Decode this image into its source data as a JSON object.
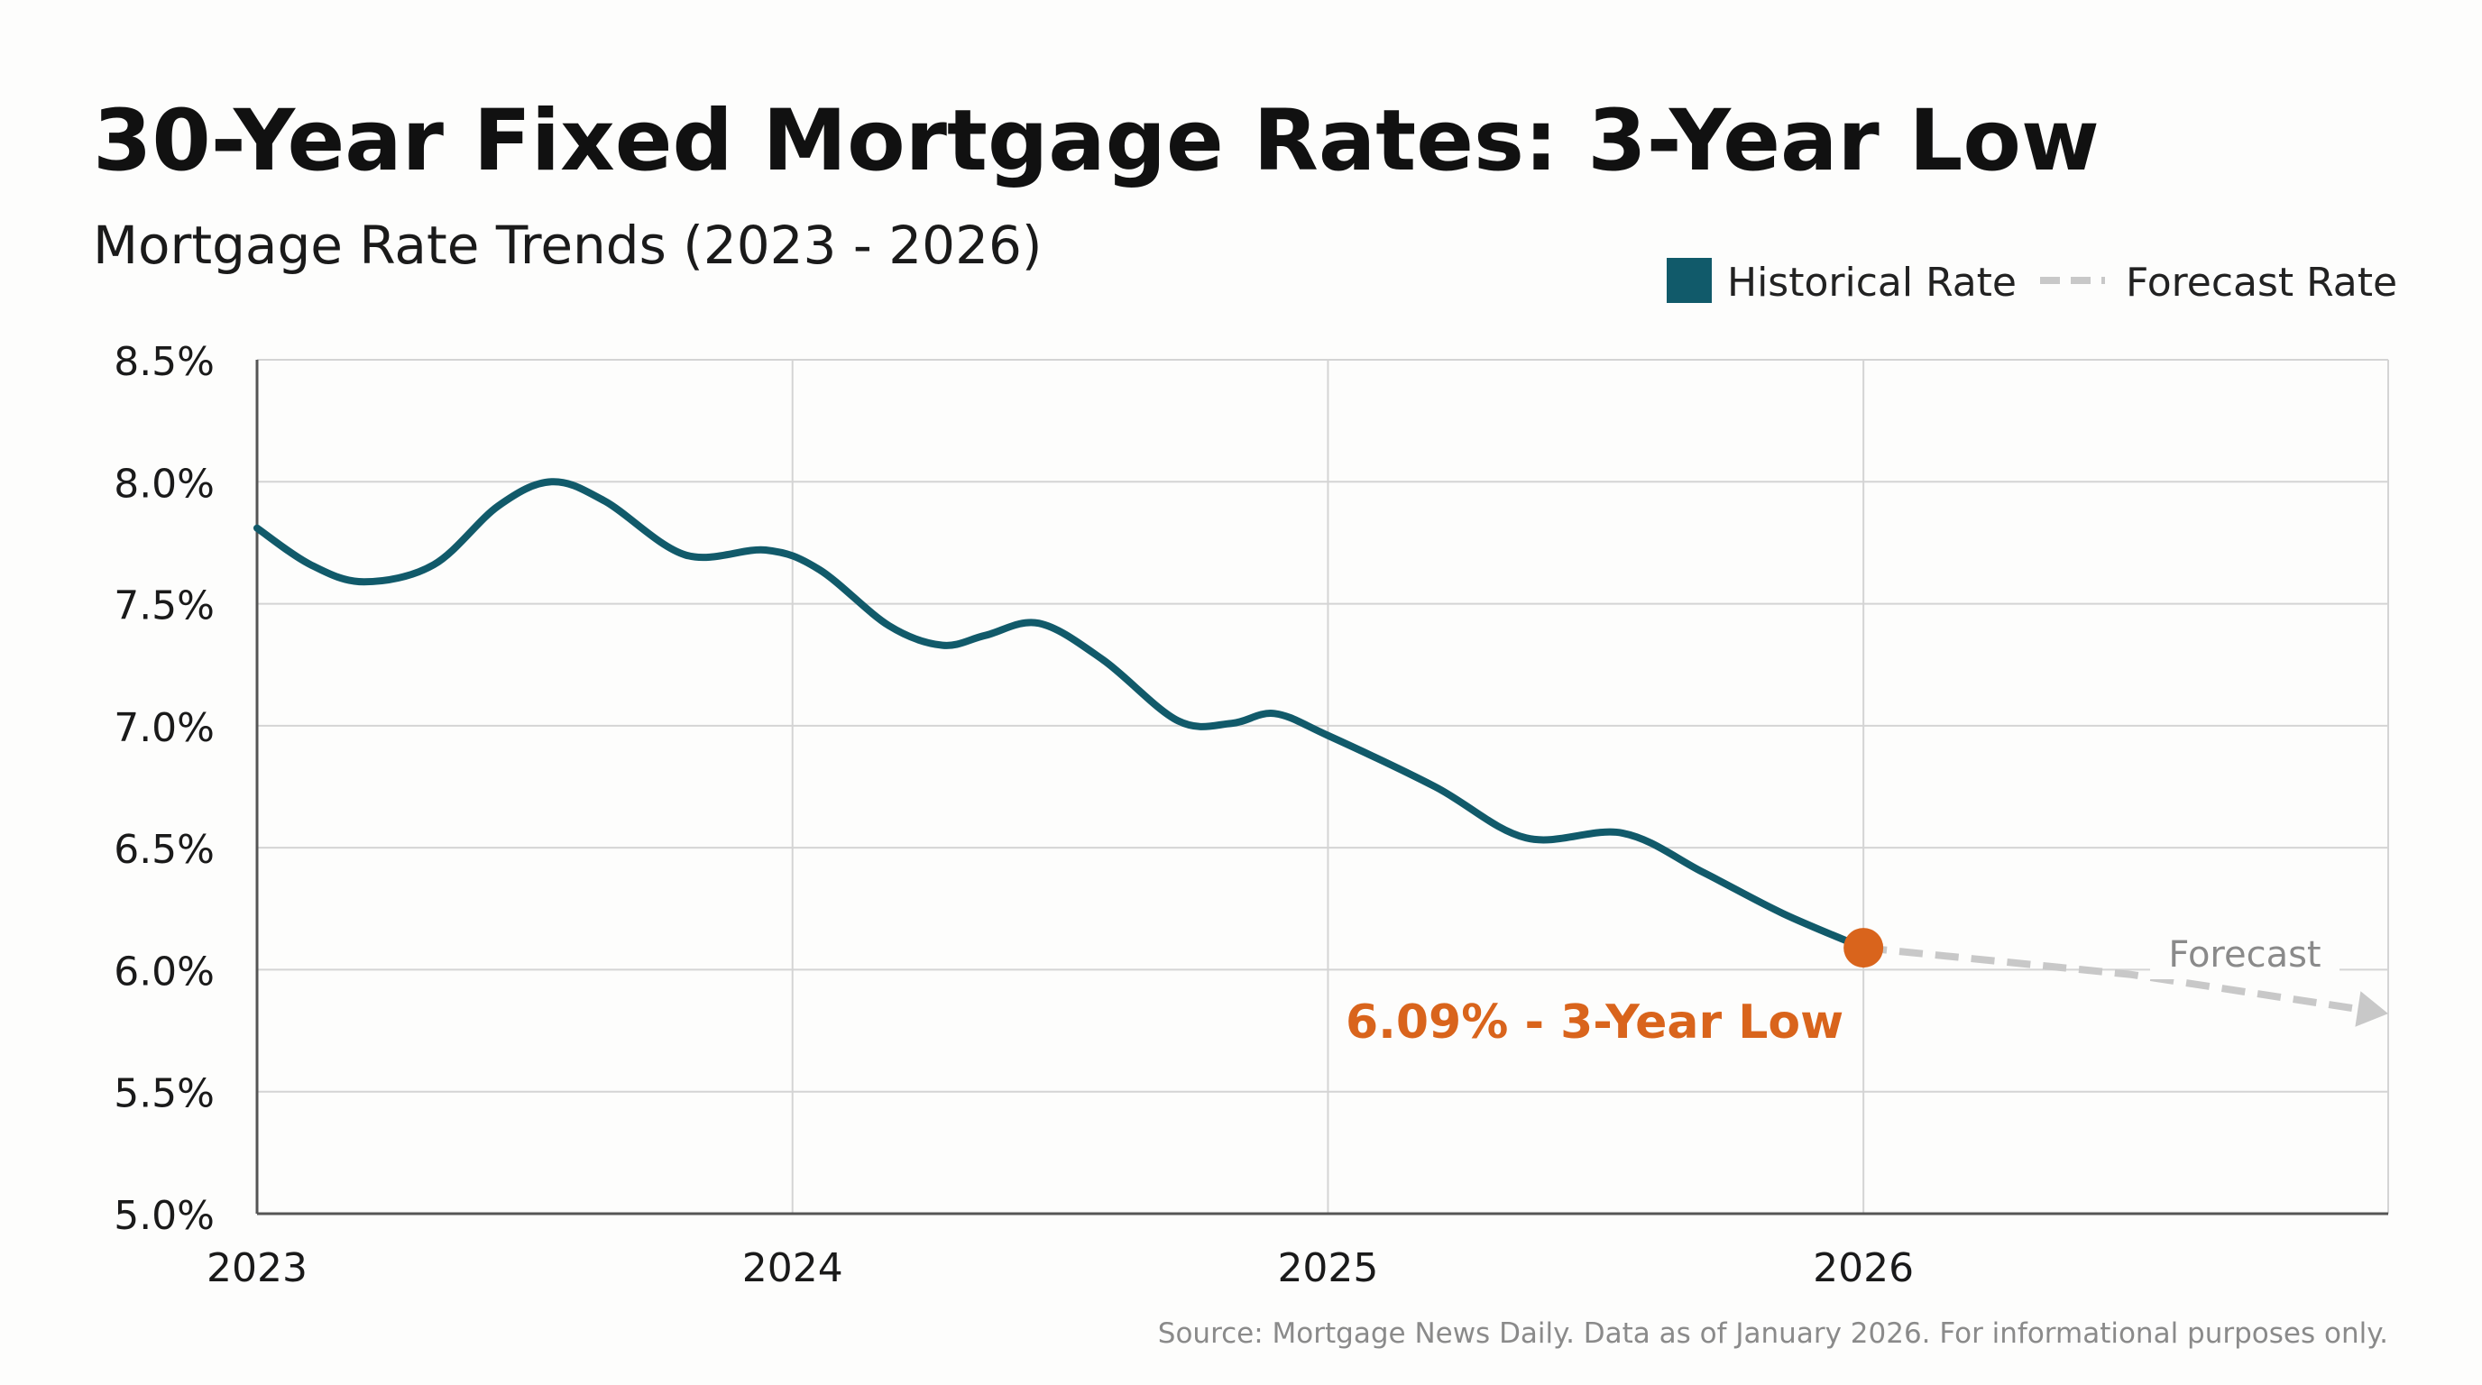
{
  "title": "30-Year Fixed Mortgage Rates: 3-Year Low",
  "subtitle": "Mortgage Rate Trends (2023 - 2026)",
  "source": "Source: Mortgage News Daily. Data as of January 2026. For informational purposes only.",
  "colors": {
    "historical": "#115a6a",
    "forecast": "#c8c8c8",
    "highlight": "#d9641c",
    "grid": "#d4d4d4",
    "axis": "#555555",
    "text": "#111111",
    "muted": "#8a8a8a"
  },
  "chart_data": {
    "type": "line",
    "title": "30-Year Fixed Mortgage Rates: 3-Year Low",
    "subtitle": "Mortgage Rate Trends (2023 - 2026)",
    "xlabel": "",
    "ylabel": "",
    "xlim": [
      2023,
      2026.98
    ],
    "ylim": [
      5.0,
      8.5
    ],
    "x_ticks": [
      2023,
      2024,
      2025,
      2026
    ],
    "x_tick_labels": [
      "2023",
      "2024",
      "2025",
      "2026"
    ],
    "y_ticks": [
      5.0,
      5.5,
      6.0,
      6.5,
      7.0,
      7.5,
      8.0,
      8.5
    ],
    "y_tick_labels": [
      "5.0%",
      "5.5%",
      "6.0%",
      "6.5%",
      "7.0%",
      "7.5%",
      "8.0%",
      "8.5%"
    ],
    "grid": true,
    "legend": {
      "position": "top-right",
      "entries": [
        "Historical Rate",
        "Forecast Rate"
      ]
    },
    "series": [
      {
        "name": "Historical Rate",
        "style": "solid",
        "points": [
          [
            2023.0,
            7.81
          ],
          [
            2023.1,
            7.66
          ],
          [
            2023.2,
            7.59
          ],
          [
            2023.33,
            7.66
          ],
          [
            2023.45,
            7.9
          ],
          [
            2023.55,
            8.0
          ],
          [
            2023.65,
            7.92
          ],
          [
            2023.8,
            7.7
          ],
          [
            2023.95,
            7.72
          ],
          [
            2024.05,
            7.64
          ],
          [
            2024.18,
            7.41
          ],
          [
            2024.28,
            7.33
          ],
          [
            2024.36,
            7.37
          ],
          [
            2024.46,
            7.42
          ],
          [
            2024.58,
            7.27
          ],
          [
            2024.72,
            7.02
          ],
          [
            2024.82,
            7.01
          ],
          [
            2024.9,
            7.05
          ],
          [
            2025.0,
            6.96
          ],
          [
            2025.2,
            6.75
          ],
          [
            2025.37,
            6.54
          ],
          [
            2025.55,
            6.56
          ],
          [
            2025.7,
            6.4
          ],
          [
            2025.85,
            6.23
          ],
          [
            2026.0,
            6.09
          ]
        ]
      },
      {
        "name": "Forecast Rate",
        "style": "dashed",
        "points": [
          [
            2026.0,
            6.09
          ],
          [
            2026.5,
            5.98
          ],
          [
            2026.98,
            5.82
          ]
        ]
      }
    ],
    "annotations": [
      {
        "text": "6.09% - 3-Year Low",
        "x": 2026.0,
        "y": 6.09
      },
      {
        "text": "Forecast",
        "x": 2026.7,
        "y": 6.04
      }
    ]
  }
}
